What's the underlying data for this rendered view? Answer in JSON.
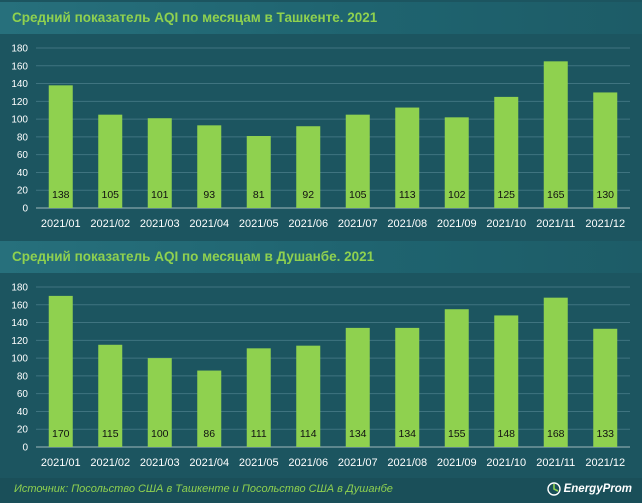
{
  "charts_text": {
    "title1": "Средний показатель AQI по месяцам в Ташкенте. 2021",
    "title2": "Средний показатель AQI по месяцам в Душанбе. 2021"
  },
  "footer": {
    "source": "Источник: Посольство США в Ташкенте и Посольство США в Душанбе",
    "logo": "EnergyProm"
  },
  "colors": {
    "background": "#1c5560",
    "bar": "#8fd14f",
    "title": "#8fd14f",
    "axis_text": "#ffffff",
    "value_label": "#111111"
  },
  "icons": {
    "logo": "energyprom-logo-icon"
  },
  "chart_data": [
    {
      "type": "bar",
      "title": "Средний показатель AQI по месяцам в Ташкенте. 2021",
      "categories": [
        "2021/01",
        "2021/02",
        "2021/03",
        "2021/04",
        "2021/05",
        "2021/06",
        "2021/07",
        "2021/08",
        "2021/09",
        "2021/10",
        "2021/11",
        "2021/12"
      ],
      "values": [
        138,
        105,
        101,
        93,
        81,
        92,
        105,
        113,
        102,
        125,
        165,
        130
      ],
      "yticks": [
        0,
        20,
        40,
        60,
        80,
        100,
        120,
        140,
        160,
        180
      ],
      "ylim": [
        0,
        180
      ],
      "grid": true,
      "legend": "none",
      "data_labels": true
    },
    {
      "type": "bar",
      "title": "Средний показатель AQI по месяцам в Душанбе. 2021",
      "categories": [
        "2021/01",
        "2021/02",
        "2021/03",
        "2021/04",
        "2021/05",
        "2021/06",
        "2021/07",
        "2021/08",
        "2021/09",
        "2021/10",
        "2021/11",
        "2021/12"
      ],
      "values": [
        170,
        115,
        100,
        86,
        111,
        114,
        134,
        134,
        155,
        148,
        168,
        133
      ],
      "yticks": [
        0,
        20,
        40,
        60,
        80,
        100,
        120,
        140,
        160,
        180
      ],
      "ylim": [
        0,
        180
      ],
      "grid": true,
      "legend": "none",
      "data_labels": true
    }
  ]
}
